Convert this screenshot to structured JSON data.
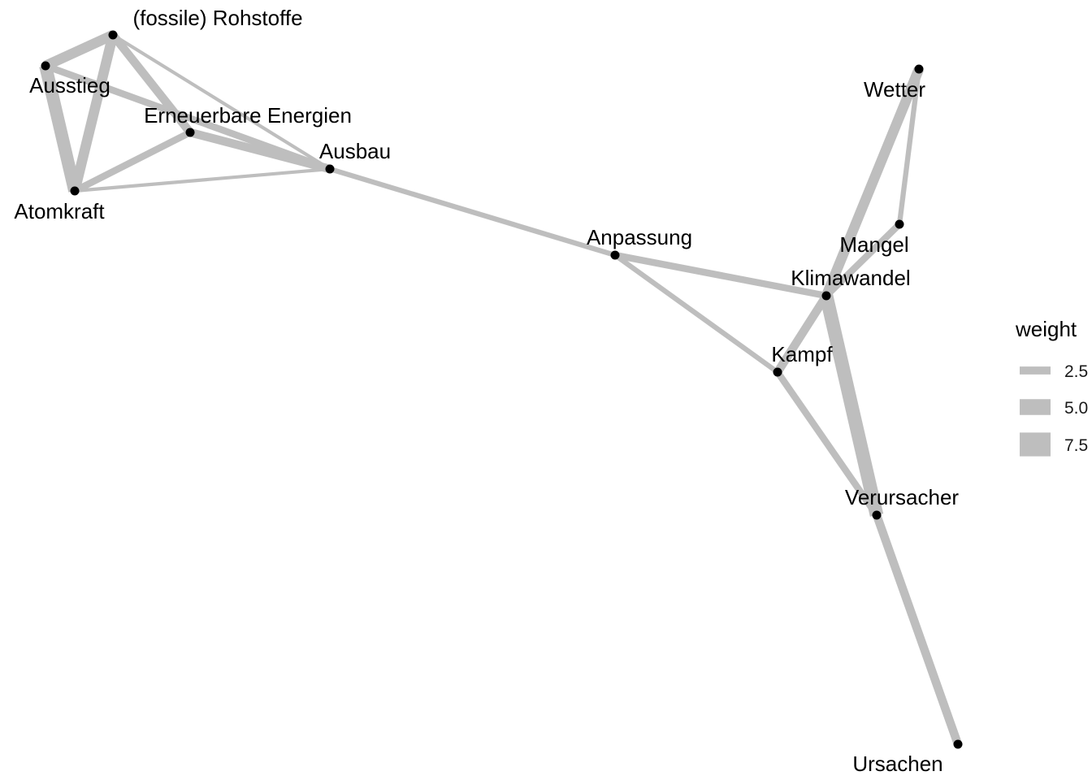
{
  "chart_data": {
    "type": "network",
    "edge_color": "#bebebe",
    "node_color": "#000000",
    "nodes": [
      {
        "id": "rohstoffe",
        "label": "(fossile) Rohstoffe"
      },
      {
        "id": "ausstieg",
        "label": "Ausstieg"
      },
      {
        "id": "erneuerbare",
        "label": "Erneuerbare Energien"
      },
      {
        "id": "ausbau",
        "label": "Ausbau"
      },
      {
        "id": "atomkraft",
        "label": "Atomkraft"
      },
      {
        "id": "anpassung",
        "label": "Anpassung"
      },
      {
        "id": "wetter",
        "label": "Wetter"
      },
      {
        "id": "mangel",
        "label": "Mangel"
      },
      {
        "id": "klimawandel",
        "label": "Klimawandel"
      },
      {
        "id": "kampf",
        "label": "Kampf"
      },
      {
        "id": "verursacher",
        "label": "Verursacher"
      },
      {
        "id": "ursachen",
        "label": "Ursachen"
      }
    ],
    "edges": [
      {
        "source": "ausstieg",
        "target": "atomkraft",
        "weight": 7.5
      },
      {
        "source": "rohstoffe",
        "target": "atomkraft",
        "weight": 6
      },
      {
        "source": "ausstieg",
        "target": "rohstoffe",
        "weight": 6
      },
      {
        "source": "ausstieg",
        "target": "ausbau",
        "weight": 4
      },
      {
        "source": "erneuerbare",
        "target": "ausbau",
        "weight": 5
      },
      {
        "source": "rohstoffe",
        "target": "erneuerbare",
        "weight": 5
      },
      {
        "source": "atomkraft",
        "target": "erneuerbare",
        "weight": 4
      },
      {
        "source": "rohstoffe",
        "target": "ausbau",
        "weight": 2
      },
      {
        "source": "atomkraft",
        "target": "ausbau",
        "weight": 2
      },
      {
        "source": "ausbau",
        "target": "anpassung",
        "weight": 3
      },
      {
        "source": "anpassung",
        "target": "klimawandel",
        "weight": 4
      },
      {
        "source": "anpassung",
        "target": "kampf",
        "weight": 3
      },
      {
        "source": "klimawandel",
        "target": "wetter",
        "weight": 6
      },
      {
        "source": "wetter",
        "target": "mangel",
        "weight": 3
      },
      {
        "source": "klimawandel",
        "target": "mangel",
        "weight": 4
      },
      {
        "source": "klimawandel",
        "target": "kampf",
        "weight": 5
      },
      {
        "source": "klimawandel",
        "target": "verursacher",
        "weight": 8
      },
      {
        "source": "kampf",
        "target": "verursacher",
        "weight": 4
      },
      {
        "source": "verursacher",
        "target": "ursachen",
        "weight": 5
      }
    ],
    "legend": {
      "title": "weight",
      "entries": [
        {
          "label": "2.5",
          "weight": 2.5
        },
        {
          "label": "5.0",
          "weight": 5.0
        },
        {
          "label": "7.5",
          "weight": 7.5
        }
      ]
    }
  }
}
